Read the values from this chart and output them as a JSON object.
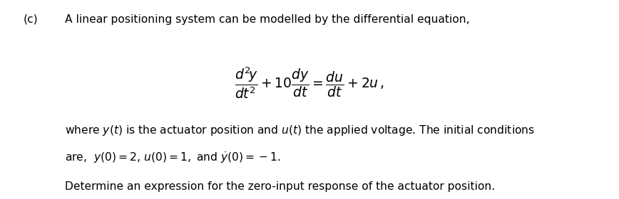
{
  "label_c": "(c)",
  "line1": "A linear positioning system can be modelled by the differential equation,",
  "equation": "$\\dfrac{d^2\\!y}{dt^2}+10\\dfrac{dy}{dt}=\\dfrac{du}{dt}+2u\\,,$",
  "line3": "where $y(t)$ is the actuator position and $u(t)$ the applied voltage. The initial conditions",
  "line4": "are,  $y(0)=2,\\,u(0)=1,$ and $\\dot{y}(0)=-1.$",
  "line5": "Determine an expression for the zero-input response of the actuator position.",
  "bg_color": "#ffffff",
  "text_color": "#000000",
  "fontsize_main": 11.2,
  "fontsize_eq": 13.5
}
